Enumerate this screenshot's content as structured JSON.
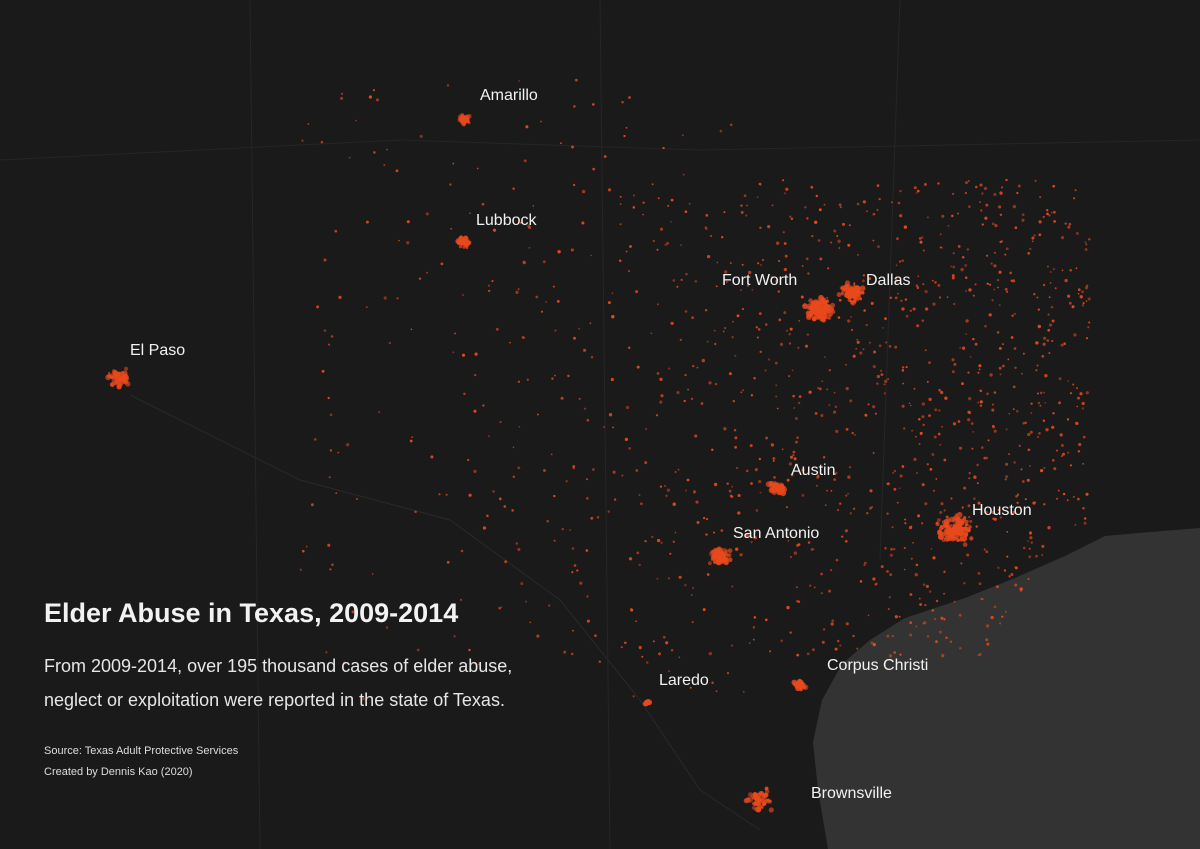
{
  "title": "Elder Abuse in Texas, 2009-2014",
  "description": [
    "From 2009-2014, over 195 thousand cases of elder abuse,",
    "neglect or exploitation were reported in the state of Texas."
  ],
  "source": "Source: Texas Adult Protective Services",
  "credit": "Created by Dennis Kao (2020)",
  "cities": [
    "Amarillo",
    "Lubbock",
    "El Paso",
    "Fort Worth",
    "Dallas",
    "Austin",
    "San Antonio",
    "Houston",
    "Corpus Christi",
    "Laredo",
    "Brownsville"
  ]
}
